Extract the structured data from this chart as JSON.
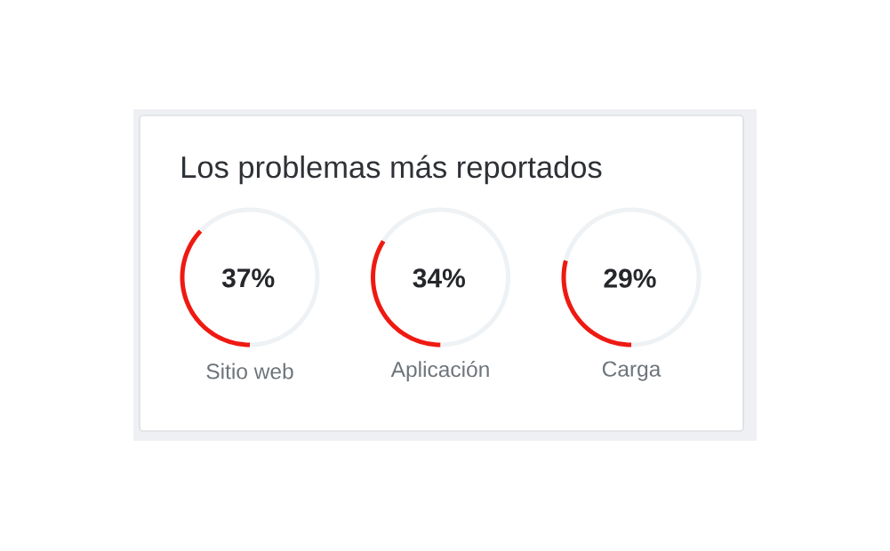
{
  "chart_data": [
    {
      "type": "other",
      "title": "Los problemas más reportados"
    },
    {
      "type": "donut",
      "categories": [
        "Sitio web",
        null
      ],
      "values": [
        37,
        63
      ],
      "colors": [
        "#ee1a12",
        "#eef2f5"
      ],
      "value_labels": [
        "37%",
        null
      ]
    },
    {
      "type": "donut",
      "categories": [
        "Aplicación",
        null
      ],
      "values": [
        34,
        66
      ],
      "colors": [
        "#ee1a12",
        "#eef2f5"
      ],
      "value_labels": [
        "34%",
        null
      ]
    },
    {
      "type": "donut",
      "categories": [
        "Carga",
        null
      ],
      "values": [
        29,
        71
      ],
      "colors": [
        "#ee1a12",
        "#eef2f5"
      ],
      "value_labels": [
        "29%",
        null
      ]
    }
  ]
}
